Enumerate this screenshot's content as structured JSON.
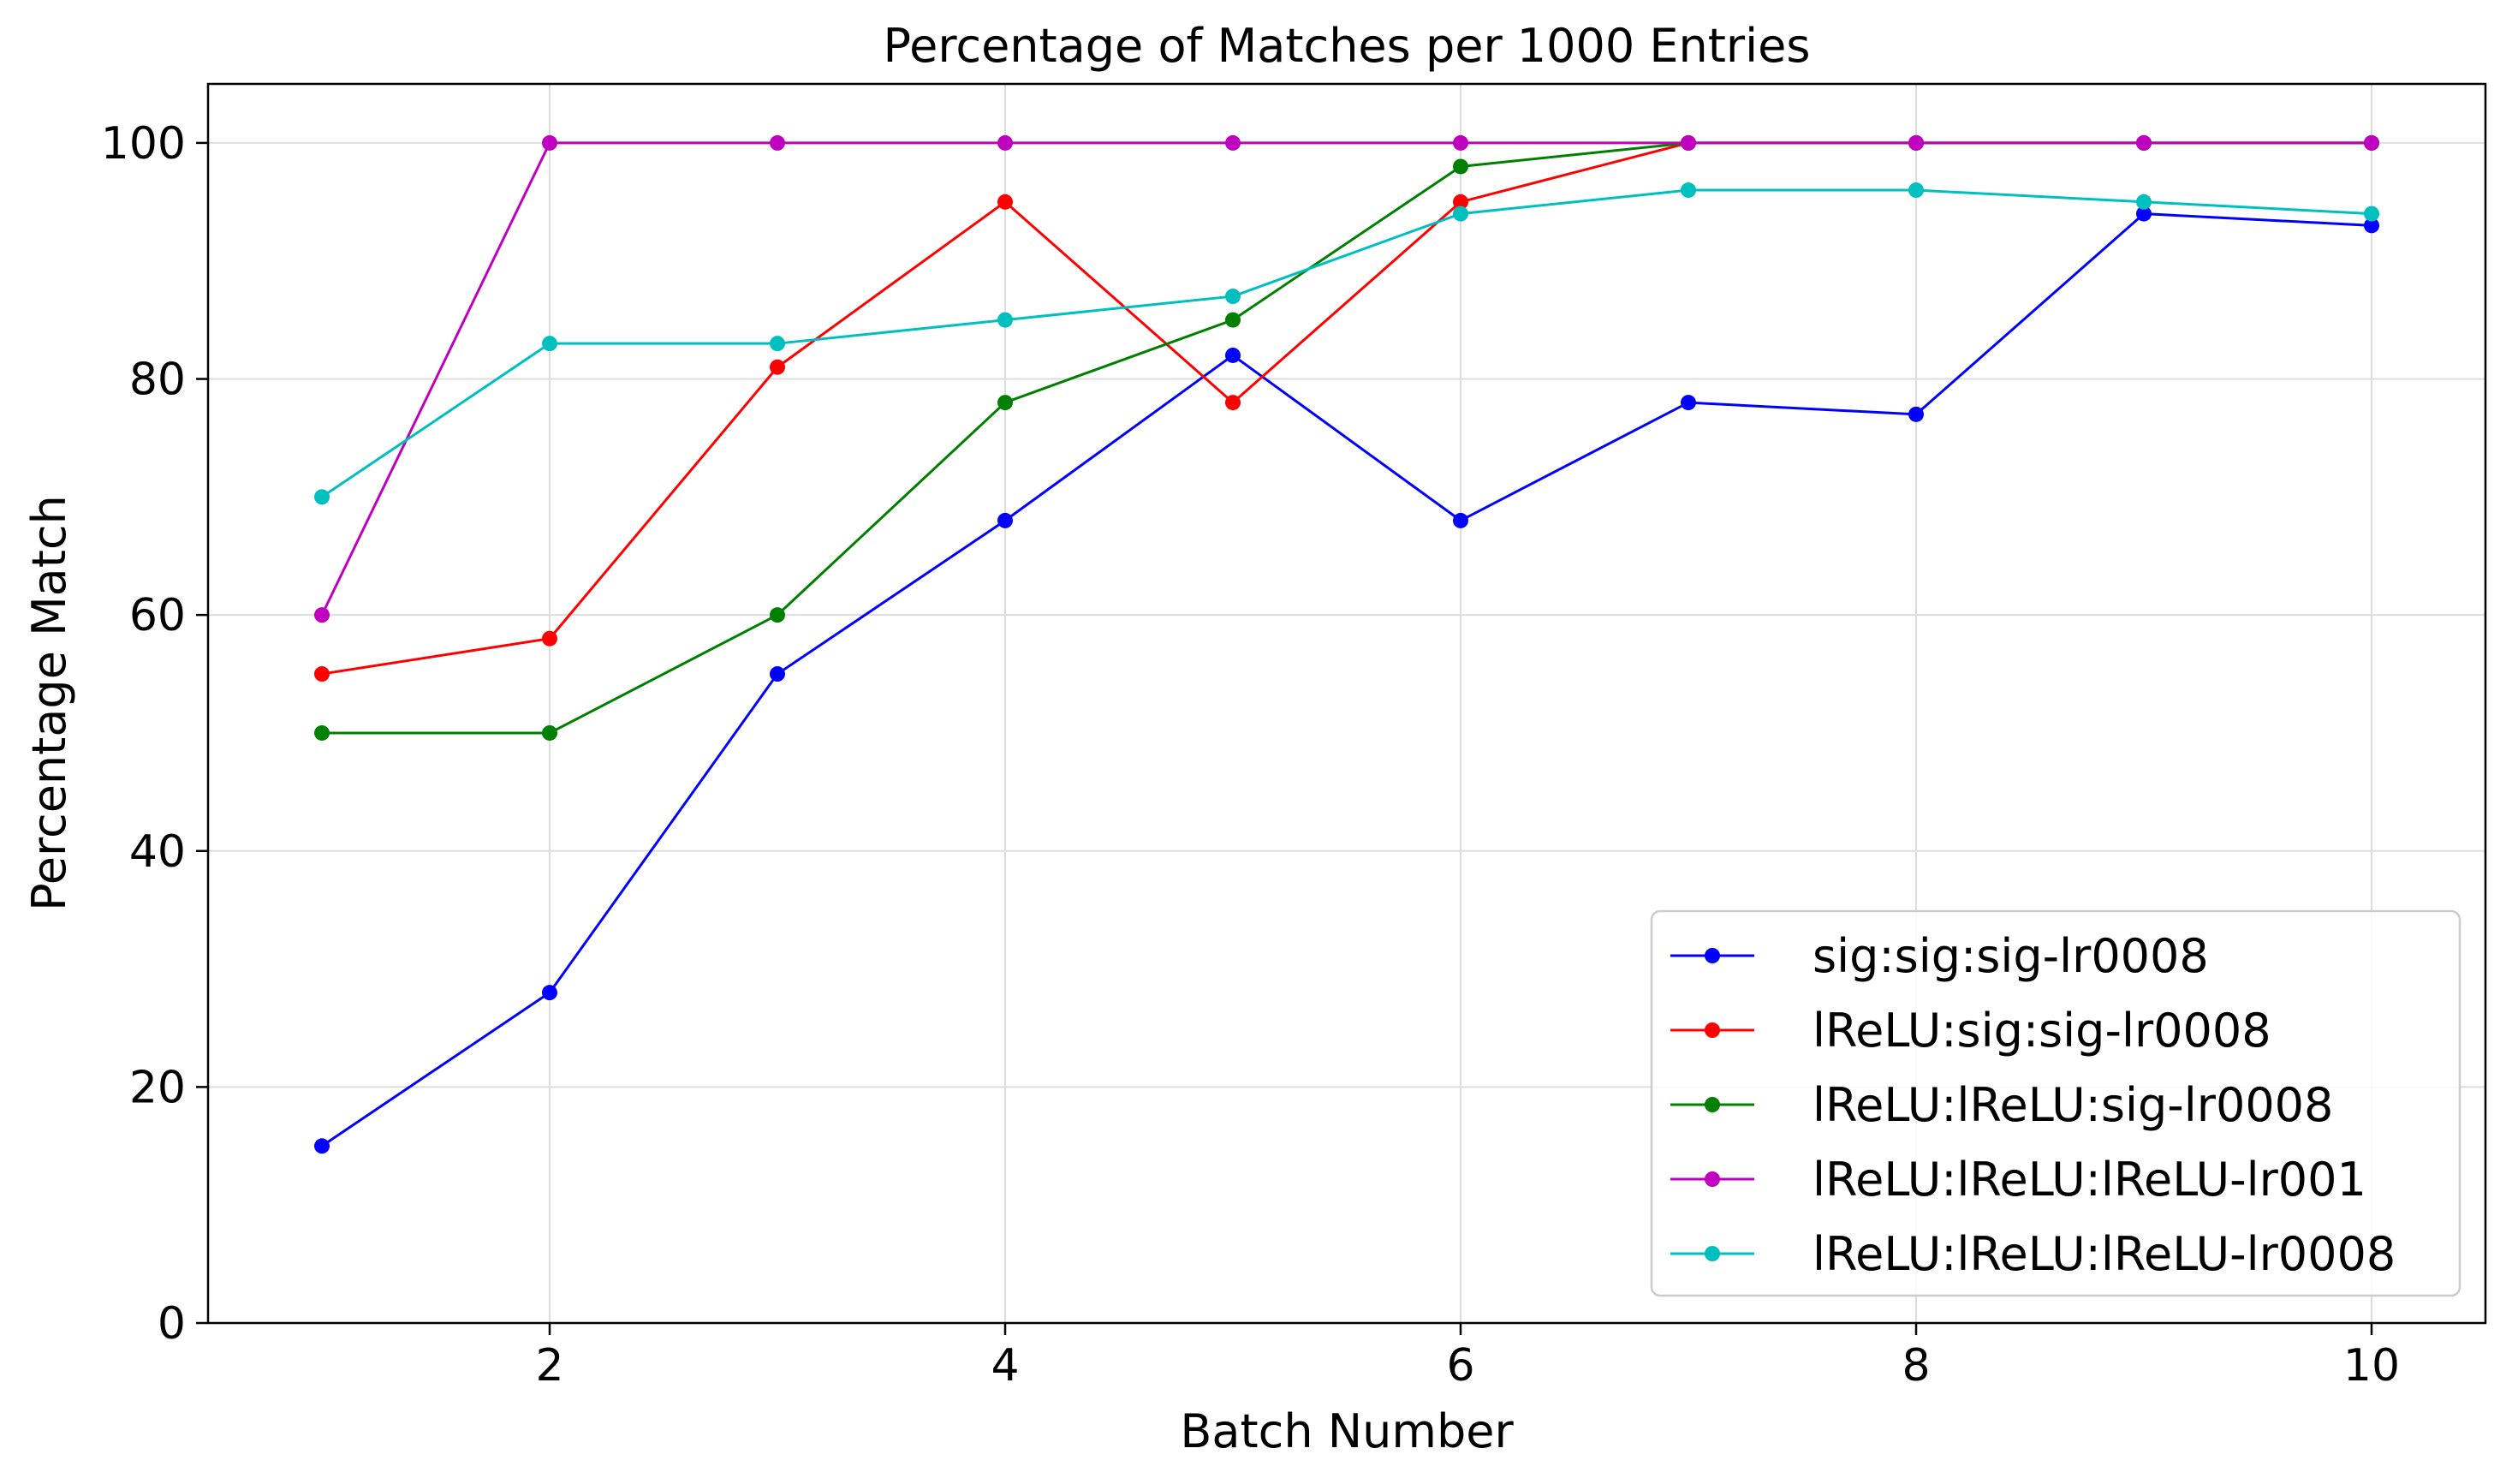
{
  "chart_data": {
    "type": "line",
    "title": "Percentage of Matches per 1000 Entries",
    "xlabel": "Batch Number",
    "ylabel": "Percentage Match",
    "xlim": [
      0.5,
      10.5
    ],
    "ylim": [
      0,
      105
    ],
    "xticks": [
      2,
      4,
      6,
      8,
      10
    ],
    "yticks": [
      0,
      20,
      40,
      60,
      80,
      100
    ],
    "grid": true,
    "legend_position": "lower-right",
    "x": [
      1,
      2,
      3,
      4,
      5,
      6,
      7,
      8,
      9,
      10
    ],
    "series": [
      {
        "name": "sig:sig:sig-lr0008",
        "color": "#0000ff",
        "values": [
          15,
          28,
          55,
          68,
          82,
          68,
          78,
          77,
          94,
          93
        ]
      },
      {
        "name": "lReLU:sig:sig-lr0008",
        "color": "#ff0000",
        "values": [
          55,
          58,
          81,
          95,
          78,
          95,
          100,
          100,
          100,
          100
        ]
      },
      {
        "name": "lReLU:lReLU:sig-lr0008",
        "color": "#008000",
        "values": [
          50,
          50,
          60,
          78,
          85,
          98,
          100,
          100,
          100,
          100
        ]
      },
      {
        "name": "lReLU:lReLU:lReLU-lr001",
        "color": "#bf00bf",
        "values": [
          60,
          100,
          100,
          100,
          100,
          100,
          100,
          100,
          100,
          100
        ]
      },
      {
        "name": "lReLU:lReLU:lReLU-lr0008",
        "color": "#00bfbf",
        "values": [
          70,
          83,
          83,
          85,
          87,
          94,
          96,
          96,
          95,
          94
        ]
      }
    ]
  }
}
